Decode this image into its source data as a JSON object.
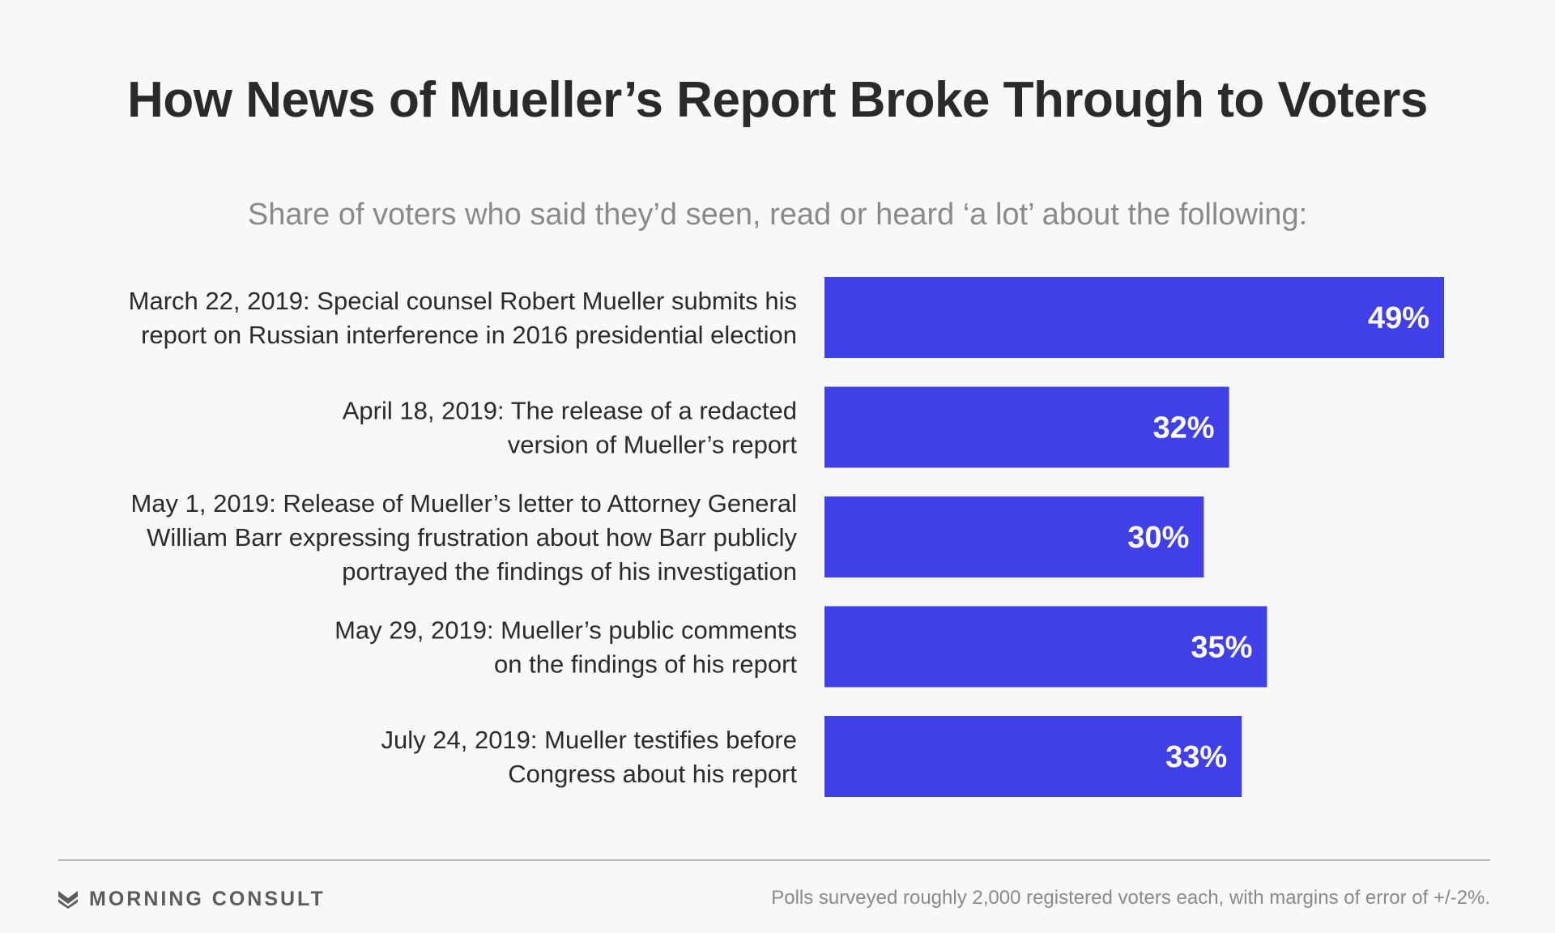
{
  "title": "How News of Mueller’s Report Broke Through to Voters",
  "subtitle": "Share of voters who said they’d seen, read or heard ‘a lot’ about the following:",
  "colors": {
    "bar": "#4040e8",
    "bar_label": "#ffffff",
    "text": "#2b2b2b",
    "muted": "#8a8a8a",
    "background": "#f8f8f8"
  },
  "chart_data": {
    "type": "bar",
    "orientation": "horizontal",
    "title": "How News of Mueller’s Report Broke Through to Voters",
    "subtitle": "Share of voters who said they’d seen, read or heard ‘a lot’ about the following:",
    "categories": [
      [
        "March 22, 2019: Special counsel Robert Mueller submits his",
        "report on Russian interference in 2016 presidential election"
      ],
      [
        "April 18, 2019: The release of a redacted",
        "version of Mueller’s report"
      ],
      [
        "May 1, 2019: Release of Mueller’s letter to Attorney General",
        "William Barr expressing frustration about how Barr publicly",
        "portrayed the findings of his investigation"
      ],
      [
        "May 29, 2019: Mueller’s public comments",
        "on the findings of his report"
      ],
      [
        "July 24, 2019: Mueller testifies before",
        "Congress about his report"
      ]
    ],
    "values": [
      49,
      32,
      30,
      35,
      33
    ],
    "value_labels": [
      "49%",
      "32%",
      "30%",
      "35%",
      "33%"
    ],
    "unit": "%",
    "grid": false,
    "legend": "none"
  },
  "footer": {
    "brand": "MORNING CONSULT",
    "brand_icon": "morning-consult-logo-icon",
    "source_note": "Polls surveyed roughly 2,000 registered voters each, with margins of error of +/-2%."
  }
}
